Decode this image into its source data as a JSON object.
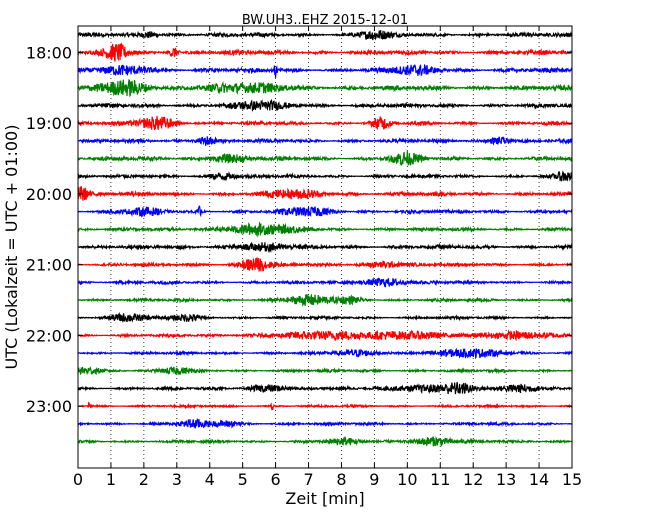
{
  "chart_data": {
    "type": "line",
    "title": "BW.UH3..EHZ 2015-12-01",
    "xlabel": "Zeit  [min]",
    "ylabel": "UTC (Lokalzeit = UTC + 01:00)",
    "xlim": [
      0,
      15
    ],
    "xticks": [
      0,
      1,
      2,
      3,
      4,
      5,
      6,
      7,
      8,
      9,
      10,
      11,
      12,
      13,
      14,
      15
    ],
    "grid": "vertical dotted",
    "trace_minutes": 15,
    "row_start": "17:45",
    "row_end": "23:45",
    "yticks": [
      "18:00",
      "19:00",
      "20:00",
      "21:00",
      "22:00",
      "23:00"
    ],
    "colors": [
      "#000000",
      "#ff0000",
      "#0000ff",
      "#008000"
    ],
    "series": [
      {
        "start": "17:45",
        "color": "#000000",
        "amp": 0.5,
        "events": [
          {
            "t": 9.0,
            "amp": 1.0,
            "dur": 0.3
          },
          {
            "t": 2.2,
            "amp": 0.7,
            "dur": 0.2
          }
        ]
      },
      {
        "start": "18:00",
        "color": "#ff0000",
        "amp": 0.55,
        "events": [
          {
            "t": 1.2,
            "amp": 1.8,
            "dur": 0.25
          },
          {
            "t": 2.9,
            "amp": 1.2,
            "dur": 0.1
          }
        ]
      },
      {
        "start": "18:15",
        "color": "#0000ff",
        "amp": 0.55,
        "events": [
          {
            "t": 6.0,
            "amp": 1.8,
            "dur": 0.03
          },
          {
            "t": 1.5,
            "amp": 0.8,
            "dur": 0.6
          },
          {
            "t": 10.2,
            "amp": 0.9,
            "dur": 0.5
          }
        ]
      },
      {
        "start": "18:30",
        "color": "#008000",
        "amp": 0.6,
        "events": [
          {
            "t": 1.4,
            "amp": 1.5,
            "dur": 0.5
          },
          {
            "t": 5.0,
            "amp": 0.8,
            "dur": 1.0
          }
        ]
      },
      {
        "start": "18:45",
        "color": "#000000",
        "amp": 0.5,
        "events": [
          {
            "t": 5.5,
            "amp": 0.8,
            "dur": 0.6
          }
        ]
      },
      {
        "start": "19:00",
        "color": "#ff0000",
        "amp": 0.45,
        "events": [
          {
            "t": 2.4,
            "amp": 1.4,
            "dur": 0.4
          },
          {
            "t": 9.2,
            "amp": 1.2,
            "dur": 0.2
          }
        ]
      },
      {
        "start": "19:15",
        "color": "#0000ff",
        "amp": 0.45,
        "events": [
          {
            "t": 3.9,
            "amp": 1.1,
            "dur": 0.2
          },
          {
            "t": 12.8,
            "amp": 0.9,
            "dur": 0.2
          }
        ]
      },
      {
        "start": "19:30",
        "color": "#008000",
        "amp": 0.5,
        "events": [
          {
            "t": 9.9,
            "amp": 1.3,
            "dur": 0.3
          },
          {
            "t": 4.5,
            "amp": 0.8,
            "dur": 0.4
          }
        ]
      },
      {
        "start": "19:45",
        "color": "#000000",
        "amp": 0.4,
        "events": [
          {
            "t": 14.8,
            "amp": 1.0,
            "dur": 0.2
          },
          {
            "t": 4.4,
            "amp": 0.7,
            "dur": 0.3
          }
        ]
      },
      {
        "start": "20:00",
        "color": "#ff0000",
        "amp": 0.5,
        "events": [
          {
            "t": 0.1,
            "amp": 1.7,
            "dur": 0.15
          },
          {
            "t": 6.6,
            "amp": 0.8,
            "dur": 0.6
          }
        ]
      },
      {
        "start": "20:15",
        "color": "#0000ff",
        "amp": 0.45,
        "events": [
          {
            "t": 3.7,
            "amp": 1.3,
            "dur": 0.03
          },
          {
            "t": 7.0,
            "amp": 0.9,
            "dur": 0.5
          },
          {
            "t": 2.0,
            "amp": 0.7,
            "dur": 0.4
          }
        ]
      },
      {
        "start": "20:30",
        "color": "#008000",
        "amp": 0.4,
        "events": [
          {
            "t": 5.5,
            "amp": 1.1,
            "dur": 0.8
          }
        ]
      },
      {
        "start": "20:45",
        "color": "#000000",
        "amp": 0.5,
        "events": [
          {
            "t": 5.5,
            "amp": 0.7,
            "dur": 0.6
          }
        ]
      },
      {
        "start": "21:00",
        "color": "#ff0000",
        "amp": 0.4,
        "events": [
          {
            "t": 5.4,
            "amp": 1.6,
            "dur": 0.3
          },
          {
            "t": 9.3,
            "amp": 0.7,
            "dur": 0.4
          }
        ]
      },
      {
        "start": "21:15",
        "color": "#0000ff",
        "amp": 0.4,
        "events": [
          {
            "t": 9.3,
            "amp": 0.8,
            "dur": 0.5
          }
        ]
      },
      {
        "start": "21:30",
        "color": "#008000",
        "amp": 0.35,
        "events": [
          {
            "t": 7.0,
            "amp": 1.0,
            "dur": 0.5
          },
          {
            "t": 8.2,
            "amp": 0.7,
            "dur": 0.3
          }
        ]
      },
      {
        "start": "21:45",
        "color": "#000000",
        "amp": 0.35,
        "events": [
          {
            "t": 1.5,
            "amp": 0.9,
            "dur": 0.4
          },
          {
            "t": 3.3,
            "amp": 0.7,
            "dur": 0.3
          }
        ]
      },
      {
        "start": "22:00",
        "color": "#ff0000",
        "amp": 0.35,
        "events": [
          {
            "t": 7.5,
            "amp": 0.8,
            "dur": 1.2
          },
          {
            "t": 10.0,
            "amp": 0.8,
            "dur": 0.8
          },
          {
            "t": 13.5,
            "amp": 0.8,
            "dur": 0.8
          }
        ]
      },
      {
        "start": "22:15",
        "color": "#0000ff",
        "amp": 0.35,
        "events": [
          {
            "t": 11.8,
            "amp": 0.8,
            "dur": 0.8
          },
          {
            "t": 8.5,
            "amp": 0.6,
            "dur": 0.5
          }
        ]
      },
      {
        "start": "22:30",
        "color": "#008000",
        "amp": 0.35,
        "events": [
          {
            "t": 0.3,
            "amp": 0.9,
            "dur": 0.3
          },
          {
            "t": 3.0,
            "amp": 0.7,
            "dur": 0.3
          }
        ]
      },
      {
        "start": "22:45",
        "color": "#000000",
        "amp": 0.35,
        "events": [
          {
            "t": 11.5,
            "amp": 1.0,
            "dur": 0.3
          },
          {
            "t": 5.8,
            "amp": 0.8,
            "dur": 0.4
          },
          {
            "t": 13.5,
            "amp": 0.8,
            "dur": 0.5
          },
          {
            "t": 10.5,
            "amp": 0.7,
            "dur": 0.8
          }
        ]
      },
      {
        "start": "23:00",
        "color": "#ff0000",
        "amp": 0.3,
        "events": [
          {
            "t": 0.35,
            "amp": 1.0,
            "dur": 0.03
          },
          {
            "t": 5.9,
            "amp": 0.8,
            "dur": 0.03
          }
        ]
      },
      {
        "start": "23:15",
        "color": "#0000ff",
        "amp": 0.35,
        "events": [
          {
            "t": 3.5,
            "amp": 0.9,
            "dur": 0.3
          },
          {
            "t": 4.5,
            "amp": 0.7,
            "dur": 0.3
          }
        ]
      },
      {
        "start": "23:30",
        "color": "#008000",
        "amp": 0.35,
        "events": [
          {
            "t": 10.8,
            "amp": 0.9,
            "dur": 0.5
          },
          {
            "t": 8.1,
            "amp": 0.6,
            "dur": 0.4
          }
        ]
      }
    ]
  }
}
